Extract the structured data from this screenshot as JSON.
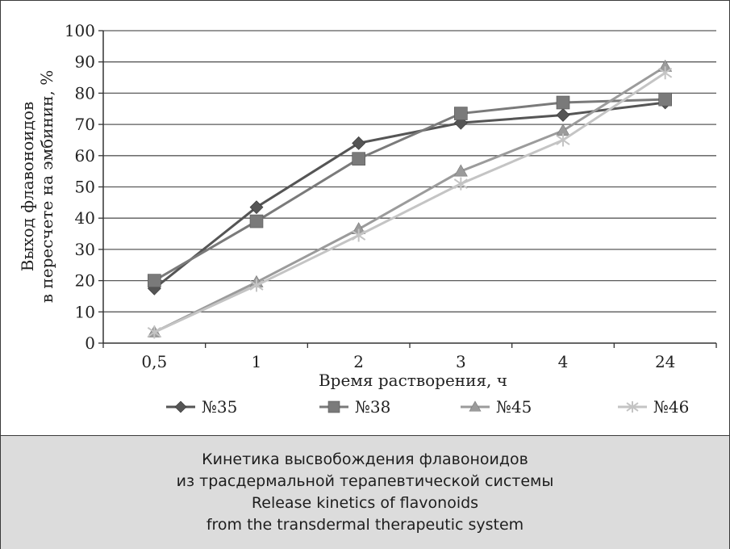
{
  "chart_data": {
    "type": "line",
    "xlabel": "Время растворения, ч",
    "ylabel_lines": [
      "Выход флавоноидов",
      "в пересчете на эмбинин, %"
    ],
    "categories": [
      "0,5",
      "1",
      "2",
      "3",
      "4",
      "24"
    ],
    "ylim": [
      0,
      100
    ],
    "yticks": [
      0,
      10,
      20,
      30,
      40,
      50,
      60,
      70,
      80,
      90,
      100
    ],
    "grid": "horizontal",
    "legend_position": "bottom",
    "series": [
      {
        "name": "№35",
        "values": [
          17.5,
          43.5,
          64,
          70.5,
          73,
          77
        ],
        "color": "#555555",
        "marker": "diamond"
      },
      {
        "name": "№38",
        "values": [
          20,
          39,
          59,
          73.5,
          77,
          78
        ],
        "color": "#7a7a7a",
        "marker": "square"
      },
      {
        "name": "№45",
        "values": [
          3.5,
          19.5,
          36.5,
          55,
          68,
          88.5
        ],
        "color": "#9b9b9b",
        "marker": "triangle"
      },
      {
        "name": "№46",
        "values": [
          3.5,
          18.5,
          34.5,
          51,
          65,
          86.5
        ],
        "color": "#c4c4c4",
        "marker": "asterisk"
      }
    ]
  },
  "caption": {
    "lines": [
      "Кинетика высвобождения флавоноидов",
      "из трасдермальной терапевтической системы",
      "Release kinetics of flavonoids",
      "from the transdermal therapeutic system"
    ]
  }
}
